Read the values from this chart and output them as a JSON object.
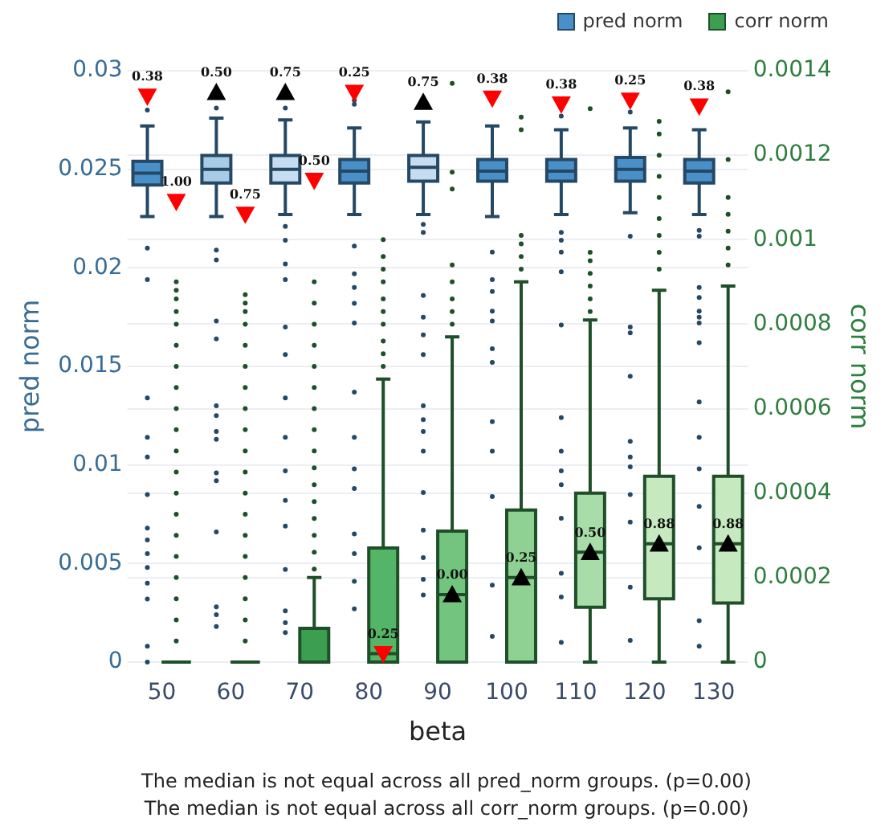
{
  "chart_data": {
    "type": "box",
    "categories": [
      "50",
      "60",
      "70",
      "80",
      "90",
      "100",
      "110",
      "120",
      "130"
    ],
    "xlabel": "beta",
    "ylabel": "pred norm",
    "y2label": "corr norm",
    "ylim": [
      0,
      0.03
    ],
    "yticks": [
      0,
      0.005,
      0.01,
      0.015,
      0.02,
      0.025,
      0.03
    ],
    "y2lim": [
      0,
      0.0014
    ],
    "y2ticks": [
      0,
      0.0002,
      0.0004,
      0.0006,
      0.0008,
      0.001,
      0.0012,
      0.0014
    ],
    "grid": "y",
    "legend": "top right",
    "annotations": [
      "The median is not equal across all pred_norm groups. (p=0.00)",
      "The median is not equal across all corr_norm groups. (p=0.00)",
      {
        "text": "0.38",
        "x": "50",
        "y": 0.0287
      },
      {
        "text": "0.25",
        "x": "80",
        "y": 0.0289
      },
      {
        "text": "0.38",
        "x": "100",
        "y": 0.0286
      },
      {
        "text": "0.38",
        "x": "110",
        "y": 0.0283
      },
      {
        "text": "0.25",
        "x": "120",
        "y": 0.0285
      },
      {
        "text": "0.38",
        "x": "130",
        "y": 0.0282
      },
      {
        "text": "0.50",
        "x": "60",
        "y": 0.0289
      },
      {
        "text": "0.75",
        "x": "70",
        "y": 0.0289
      },
      {
        "text": "0.75",
        "x": "90",
        "y": 0.0284
      },
      {
        "text": "1.00",
        "x": "50",
        "y": 0.02336
      },
      {
        "text": "0.75",
        "x": "60",
        "y": 0.02271
      },
      {
        "text": "0.50",
        "x": "70",
        "y": 0.02443
      },
      {
        "text": "0.25",
        "x": "80",
        "y": 0.00043
      },
      {
        "text": "0.00",
        "x": "90",
        "y": 0.00343
      },
      {
        "text": "0.25",
        "x": "100",
        "y": 0.00429
      },
      {
        "text": "0.50",
        "x": "110",
        "y": 0.00557
      },
      {
        "text": "0.88",
        "x": "120",
        "y": 0.006
      },
      {
        "text": "0.88",
        "x": "130",
        "y": 0.006
      }
    ],
    "series": [
      {
        "name": "pred norm",
        "color": "#4a90c8",
        "colors": [
          "#4a90c8",
          "#a8cbe6",
          "#c6dcf0",
          "#4a90c8",
          "#c6dcf0",
          "#4a90c8",
          "#4a90c8",
          "#4a90c8",
          "#4a90c8"
        ],
        "boxes": [
          {
            "low": 0.0226,
            "q1": 0.0242,
            "median": 0.0248,
            "q3": 0.0254,
            "high": 0.0272,
            "outliers": [
              0.028,
              0.021,
              0.0194,
              0.0134,
              0.0114,
              0.0104,
              0.0085,
              0.0068,
              0.0062,
              0.0055,
              0.0048,
              0.004,
              0.0032,
              0.0008,
              0
            ]
          },
          {
            "low": 0.0226,
            "q1": 0.0243,
            "median": 0.025,
            "q3": 0.0257,
            "high": 0.0276,
            "outliers": [
              0.0281,
              0.0209,
              0.0204,
              0.0173,
              0.0164,
              0.013,
              0.0125,
              0.0117,
              0.0113,
              0.0096,
              0.0092,
              0.0066,
              0.0028,
              0.0024,
              0.0018
            ]
          },
          {
            "low": 0.0227,
            "q1": 0.0243,
            "median": 0.025,
            "q3": 0.0257,
            "high": 0.0275,
            "outliers": [
              0.0281,
              0.0221,
              0.0214,
              0.0202,
              0.0194,
              0.017,
              0.0156,
              0.0134,
              0.0114,
              0.0097,
              0.0082,
              0.0069,
              0.0047,
              0.0026,
              0.002,
              0.0015
            ]
          },
          {
            "low": 0.0227,
            "q1": 0.0243,
            "median": 0.0249,
            "q3": 0.0255,
            "high": 0.0271,
            "outliers": [
              0.0285,
              0.0283,
              0.0211,
              0.0197,
              0.019,
              0.0182,
              0.0172,
              0.0137,
              0.0114,
              0.0098,
              0.0088,
              0.0065,
              0.0055,
              0.0041,
              0.0027
            ]
          },
          {
            "low": 0.0227,
            "q1": 0.0244,
            "median": 0.0251,
            "q3": 0.0257,
            "high": 0.0274,
            "outliers": [
              0.0222,
              0.0218,
              0.0186,
              0.0175,
              0.0166,
              0.0156,
              0.013,
              0.0123,
              0.0117,
              0.0107,
              0.0086,
              0.0067,
              0.0053,
              0.0042,
              0.0034
            ]
          },
          {
            "low": 0.0226,
            "q1": 0.0244,
            "median": 0.0249,
            "q3": 0.0255,
            "high": 0.0272,
            "outliers": [
              0.0208,
              0.0194,
              0.0188,
              0.0178,
              0.0173,
              0.0159,
              0.0152,
              0.0122,
              0.0107,
              0.0084,
              0.0039,
              0.0013
            ]
          },
          {
            "low": 0.0227,
            "q1": 0.0244,
            "median": 0.0249,
            "q3": 0.0255,
            "high": 0.027,
            "outliers": [
              0.0277,
              0.0218,
              0.0214,
              0.0208,
              0.0198,
              0.0171,
              0.0124,
              0.0107,
              0.0097,
              0.009,
              0.0073,
              0.0045,
              0.0033,
              0.001
            ]
          },
          {
            "low": 0.0228,
            "q1": 0.0244,
            "median": 0.025,
            "q3": 0.0256,
            "high": 0.0271,
            "outliers": [
              0.0279,
              0.0216,
              0.017,
              0.0167,
              0.0145,
              0.0112,
              0.0104,
              0.0099,
              0.0085,
              0.0071,
              0.0038,
              0.0011
            ]
          },
          {
            "low": 0.0227,
            "q1": 0.0243,
            "median": 0.0249,
            "q3": 0.0255,
            "high": 0.027,
            "outliers": [
              0.0219,
              0.0216,
              0.019,
              0.0185,
              0.0178,
              0.0175,
              0.0172,
              0.0162,
              0.0132,
              0.0114,
              0.0098,
              0.0079,
              0.0058,
              0.0021,
              0.0008
            ]
          }
        ]
      },
      {
        "name": "corr norm",
        "color": "#3b9e50",
        "axis": "y2",
        "colors": [
          "#3b9e50",
          "#3b9e50",
          "#3b9e50",
          "#55b566",
          "#73c47f",
          "#8fd193",
          "#a8dca8",
          "#c7e9c0",
          "#c7e9c0"
        ],
        "boxes": [
          {
            "low": 0,
            "q1": 0,
            "median": 0,
            "q3": 0,
            "high": 0,
            "outliers": [
              5e-05,
              0.0001,
              0.00015,
              0.0002,
              0.00025,
              0.0003,
              0.00035,
              0.0004,
              0.00045,
              0.0005,
              0.00055,
              0.0006,
              0.00065,
              0.0007,
              0.00075,
              0.0008,
              0.00083,
              0.00086,
              0.00088,
              0.0009
            ]
          },
          {
            "low": 0,
            "q1": 0,
            "median": 0,
            "q3": 0,
            "high": 0,
            "outliers": [
              5e-05,
              0.0001,
              0.00015,
              0.0002,
              0.00025,
              0.0003,
              0.00035,
              0.0004,
              0.00045,
              0.0005,
              0.00055,
              0.0006,
              0.00065,
              0.0007,
              0.00075,
              0.0008,
              0.00083,
              0.00085,
              0.00087
            ]
          },
          {
            "low": 0,
            "q1": 0,
            "median": 0,
            "q3": 8e-05,
            "high": 0.0002,
            "outliers": [
              0.00022,
              0.00026,
              0.0003,
              0.00034,
              0.00038,
              0.00042,
              0.00046,
              0.0005,
              0.00055,
              0.0006,
              0.00065,
              0.0007,
              0.00075,
              0.0008,
              0.00085,
              0.0009
            ]
          },
          {
            "low": 0,
            "q1": 0,
            "median": 2e-05,
            "q3": 0.00027,
            "high": 0.00067,
            "outliers": [
              0.0007,
              0.00073,
              0.00076,
              0.0008,
              0.00083,
              0.00086,
              0.0009,
              0.00093,
              0.00096,
              0.001
            ]
          },
          {
            "low": 0,
            "q1": 0,
            "median": 0.00016,
            "q3": 0.00031,
            "high": 0.00077,
            "outliers": [
              0.0008,
              0.00083,
              0.00086,
              0.0009,
              0.00094,
              0.00112,
              0.00116,
              0.00137
            ]
          },
          {
            "low": 0,
            "q1": 0,
            "median": 0.0002,
            "q3": 0.00036,
            "high": 0.0009,
            "outliers": [
              0.00093,
              0.00096,
              0.00099,
              0.00101,
              0.00126,
              0.00129
            ]
          },
          {
            "low": 0,
            "q1": 0.00013,
            "median": 0.00026,
            "q3": 0.0004,
            "high": 0.00081,
            "outliers": [
              0.00083,
              0.00086,
              0.00089,
              0.00092,
              0.00095,
              0.00097,
              0.00131
            ]
          },
          {
            "low": 0,
            "q1": 0.00015,
            "median": 0.00028,
            "q3": 0.00044,
            "high": 0.00088,
            "outliers": [
              0.00093,
              0.00097,
              0.00101,
              0.00105,
              0.0011,
              0.00115,
              0.0012,
              0.00125,
              0.00128
            ]
          },
          {
            "low": 0,
            "q1": 0.00014,
            "median": 0.00028,
            "q3": 0.00044,
            "high": 0.00089,
            "outliers": [
              0.00094,
              0.00098,
              0.00102,
              0.00106,
              0.0011,
              0.00119,
              0.00135
            ]
          }
        ]
      },
      {
        "type": "scatter",
        "marker": "triangle-down",
        "color": "#ff0000",
        "x": [
          "50",
          "80",
          "100",
          "110",
          "120",
          "130"
        ],
        "values": [
          0.0287,
          0.0289,
          0.0286,
          0.0283,
          0.0285,
          0.0282
        ]
      },
      {
        "type": "scatter",
        "marker": "triangle",
        "color": "#000000",
        "x": [
          "60",
          "70",
          "90"
        ],
        "values": [
          0.0289,
          0.0289,
          0.0284
        ]
      },
      {
        "type": "scatter",
        "marker": "triangle-down",
        "color": "#ff0000",
        "axis": "y2",
        "x": [
          "50",
          "60",
          "70",
          "80"
        ],
        "values": [
          0.00109,
          0.00106,
          0.00114,
          2e-05
        ]
      },
      {
        "type": "scatter",
        "marker": "triangle",
        "color": "#000000",
        "axis": "y2",
        "x": [
          "90",
          "100",
          "110",
          "120",
          "130"
        ],
        "values": [
          0.00016,
          0.0002,
          0.00026,
          0.00028,
          0.00028
        ]
      }
    ]
  }
}
